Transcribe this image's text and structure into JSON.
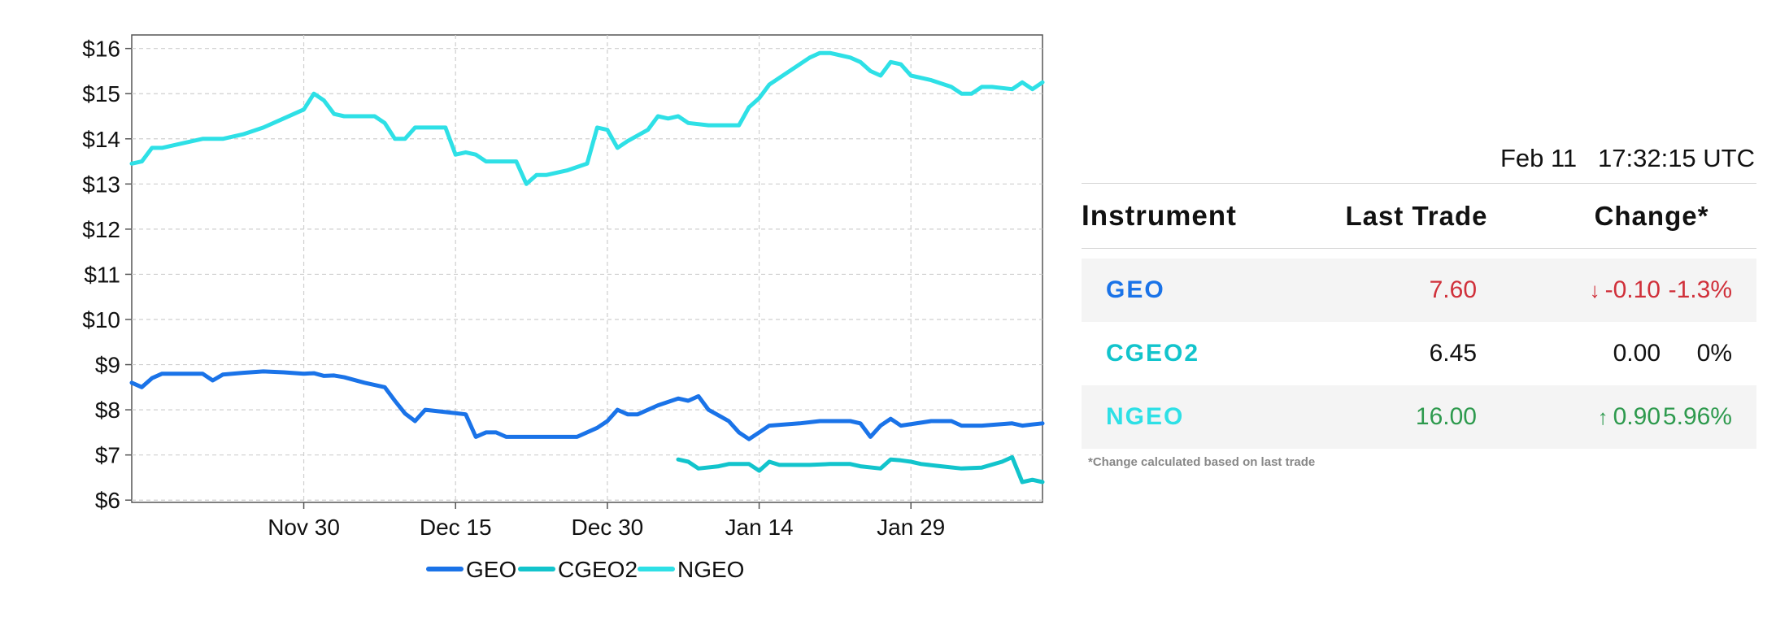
{
  "chart_data": {
    "type": "line",
    "x_ticks": [
      "Nov 30",
      "Dec 15",
      "Dec 30",
      "Jan 14",
      "Jan 29"
    ],
    "y_ticks": [
      "$6",
      "$7",
      "$8",
      "$9",
      "$10",
      "$11",
      "$12",
      "$13",
      "$14",
      "$15",
      "$16"
    ],
    "ylim": [
      5.95,
      16.3
    ],
    "xlim": [
      "2019-11-13",
      "2020-02-11"
    ],
    "grid": true,
    "legend_position": "bottom-center",
    "series": [
      {
        "name": "GEO",
        "color": "#1a73e8",
        "points": [
          [
            "2019-11-13",
            8.6
          ],
          [
            "2019-11-14",
            8.5
          ],
          [
            "2019-11-15",
            8.7
          ],
          [
            "2019-11-16",
            8.8
          ],
          [
            "2019-11-18",
            8.8
          ],
          [
            "2019-11-20",
            8.8
          ],
          [
            "2019-11-21",
            8.65
          ],
          [
            "2019-11-22",
            8.78
          ],
          [
            "2019-11-24",
            8.82
          ],
          [
            "2019-11-26",
            8.85
          ],
          [
            "2019-11-28",
            8.83
          ],
          [
            "2019-11-30",
            8.8
          ],
          [
            "2019-12-01",
            8.81
          ],
          [
            "2019-12-02",
            8.75
          ],
          [
            "2019-12-03",
            8.76
          ],
          [
            "2019-12-04",
            8.72
          ],
          [
            "2019-12-06",
            8.6
          ],
          [
            "2019-12-08",
            8.5
          ],
          [
            "2019-12-09",
            8.2
          ],
          [
            "2019-12-10",
            7.92
          ],
          [
            "2019-12-11",
            7.75
          ],
          [
            "2019-12-12",
            8.0
          ],
          [
            "2019-12-14",
            7.95
          ],
          [
            "2019-12-16",
            7.9
          ],
          [
            "2019-12-17",
            7.4
          ],
          [
            "2019-12-18",
            7.5
          ],
          [
            "2019-12-19",
            7.5
          ],
          [
            "2019-12-20",
            7.4
          ],
          [
            "2019-12-23",
            7.4
          ],
          [
            "2019-12-25",
            7.4
          ],
          [
            "2019-12-27",
            7.4
          ],
          [
            "2019-12-29",
            7.6
          ],
          [
            "2019-12-30",
            7.75
          ],
          [
            "2019-12-31",
            8.0
          ],
          [
            "2020-01-01",
            7.9
          ],
          [
            "2020-01-02",
            7.9
          ],
          [
            "2020-01-04",
            8.1
          ],
          [
            "2020-01-06",
            8.25
          ],
          [
            "2020-01-07",
            8.2
          ],
          [
            "2020-01-08",
            8.3
          ],
          [
            "2020-01-09",
            8.0
          ],
          [
            "2020-01-11",
            7.75
          ],
          [
            "2020-01-12",
            7.5
          ],
          [
            "2020-01-13",
            7.35
          ],
          [
            "2020-01-14",
            7.5
          ],
          [
            "2020-01-15",
            7.65
          ],
          [
            "2020-01-18",
            7.7
          ],
          [
            "2020-01-20",
            7.75
          ],
          [
            "2020-01-23",
            7.75
          ],
          [
            "2020-01-24",
            7.7
          ],
          [
            "2020-01-25",
            7.4
          ],
          [
            "2020-01-26",
            7.65
          ],
          [
            "2020-01-27",
            7.8
          ],
          [
            "2020-01-28",
            7.65
          ],
          [
            "2020-01-31",
            7.75
          ],
          [
            "2020-02-02",
            7.75
          ],
          [
            "2020-02-03",
            7.65
          ],
          [
            "2020-02-05",
            7.65
          ],
          [
            "2020-02-08",
            7.7
          ],
          [
            "2020-02-09",
            7.65
          ],
          [
            "2020-02-11",
            7.7
          ]
        ]
      },
      {
        "name": "CGEO2",
        "color": "#12c4cc",
        "points": [
          [
            "2020-01-06",
            6.9
          ],
          [
            "2020-01-07",
            6.85
          ],
          [
            "2020-01-08",
            6.7
          ],
          [
            "2020-01-10",
            6.75
          ],
          [
            "2020-01-11",
            6.8
          ],
          [
            "2020-01-13",
            6.8
          ],
          [
            "2020-01-14",
            6.65
          ],
          [
            "2020-01-15",
            6.85
          ],
          [
            "2020-01-16",
            6.78
          ],
          [
            "2020-01-19",
            6.78
          ],
          [
            "2020-01-21",
            6.8
          ],
          [
            "2020-01-23",
            6.8
          ],
          [
            "2020-01-24",
            6.75
          ],
          [
            "2020-01-26",
            6.7
          ],
          [
            "2020-01-27",
            6.9
          ],
          [
            "2020-01-28",
            6.88
          ],
          [
            "2020-01-29",
            6.85
          ],
          [
            "2020-01-30",
            6.8
          ],
          [
            "2020-02-01",
            6.75
          ],
          [
            "2020-02-03",
            6.7
          ],
          [
            "2020-02-05",
            6.72
          ],
          [
            "2020-02-07",
            6.85
          ],
          [
            "2020-02-08",
            6.95
          ],
          [
            "2020-02-09",
            6.4
          ],
          [
            "2020-02-10",
            6.45
          ],
          [
            "2020-02-11",
            6.4
          ]
        ]
      },
      {
        "name": "NGEO",
        "color": "#2ee0e6",
        "points": [
          [
            "2019-11-13",
            13.45
          ],
          [
            "2019-11-14",
            13.5
          ],
          [
            "2019-11-15",
            13.8
          ],
          [
            "2019-11-16",
            13.8
          ],
          [
            "2019-11-18",
            13.9
          ],
          [
            "2019-11-20",
            14.0
          ],
          [
            "2019-11-22",
            14.0
          ],
          [
            "2019-11-24",
            14.1
          ],
          [
            "2019-11-26",
            14.25
          ],
          [
            "2019-11-28",
            14.45
          ],
          [
            "2019-11-30",
            14.65
          ],
          [
            "2019-12-01",
            15.0
          ],
          [
            "2019-12-02",
            14.85
          ],
          [
            "2019-12-03",
            14.55
          ],
          [
            "2019-12-04",
            14.5
          ],
          [
            "2019-12-06",
            14.5
          ],
          [
            "2019-12-07",
            14.5
          ],
          [
            "2019-12-08",
            14.35
          ],
          [
            "2019-12-09",
            14.0
          ],
          [
            "2019-12-10",
            14.0
          ],
          [
            "2019-12-11",
            14.25
          ],
          [
            "2019-12-13",
            14.25
          ],
          [
            "2019-12-14",
            14.25
          ],
          [
            "2019-12-15",
            13.65
          ],
          [
            "2019-12-16",
            13.7
          ],
          [
            "2019-12-17",
            13.65
          ],
          [
            "2019-12-18",
            13.5
          ],
          [
            "2019-12-19",
            13.5
          ],
          [
            "2019-12-21",
            13.5
          ],
          [
            "2019-12-22",
            13.0
          ],
          [
            "2019-12-23",
            13.2
          ],
          [
            "2019-12-24",
            13.2
          ],
          [
            "2019-12-26",
            13.3
          ],
          [
            "2019-12-28",
            13.45
          ],
          [
            "2019-12-29",
            14.25
          ],
          [
            "2019-12-30",
            14.2
          ],
          [
            "2019-12-31",
            13.8
          ],
          [
            "2020-01-01",
            13.95
          ],
          [
            "2020-01-03",
            14.2
          ],
          [
            "2020-01-04",
            14.5
          ],
          [
            "2020-01-05",
            14.45
          ],
          [
            "2020-01-06",
            14.5
          ],
          [
            "2020-01-07",
            14.35
          ],
          [
            "2020-01-09",
            14.3
          ],
          [
            "2020-01-11",
            14.3
          ],
          [
            "2020-01-12",
            14.3
          ],
          [
            "2020-01-13",
            14.7
          ],
          [
            "2020-01-14",
            14.9
          ],
          [
            "2020-01-15",
            15.2
          ],
          [
            "2020-01-17",
            15.5
          ],
          [
            "2020-01-19",
            15.8
          ],
          [
            "2020-01-20",
            15.9
          ],
          [
            "2020-01-21",
            15.9
          ],
          [
            "2020-01-22",
            15.85
          ],
          [
            "2020-01-23",
            15.8
          ],
          [
            "2020-01-24",
            15.7
          ],
          [
            "2020-01-25",
            15.5
          ],
          [
            "2020-01-26",
            15.4
          ],
          [
            "2020-01-27",
            15.7
          ],
          [
            "2020-01-28",
            15.65
          ],
          [
            "2020-01-29",
            15.4
          ],
          [
            "2020-01-31",
            15.3
          ],
          [
            "2020-02-02",
            15.15
          ],
          [
            "2020-02-03",
            15.0
          ],
          [
            "2020-02-04",
            15.0
          ],
          [
            "2020-02-05",
            15.15
          ],
          [
            "2020-02-06",
            15.15
          ],
          [
            "2020-02-08",
            15.1
          ],
          [
            "2020-02-09",
            15.25
          ],
          [
            "2020-02-10",
            15.1
          ],
          [
            "2020-02-11",
            15.25
          ]
        ]
      }
    ]
  },
  "quote_panel": {
    "date": "Feb 11",
    "time": "17:32:15 UTC",
    "headers": {
      "instrument": "Instrument",
      "last_trade": "Last Trade",
      "change": "Change*"
    },
    "rows": [
      {
        "symbol": "GEO",
        "last": "7.60",
        "change": "-0.10",
        "percent": "-1.3%",
        "direction": "down"
      },
      {
        "symbol": "CGEO2",
        "last": "6.45",
        "change": "0.00",
        "percent": "0%",
        "direction": "flat"
      },
      {
        "symbol": "NGEO",
        "last": "16.00",
        "change": "0.90",
        "percent": "5.96%",
        "direction": "up"
      }
    ],
    "footnote": "*Change calculated based on last trade"
  },
  "colors": {
    "geo": "#1a73e8",
    "cgeo2": "#12c4cc",
    "ngeo": "#2ee0e6",
    "down": "#d0303a",
    "up": "#2e9a4e",
    "flat": "#111111"
  },
  "icons": {
    "down": "down-arrow-icon",
    "up": "up-arrow-icon"
  }
}
